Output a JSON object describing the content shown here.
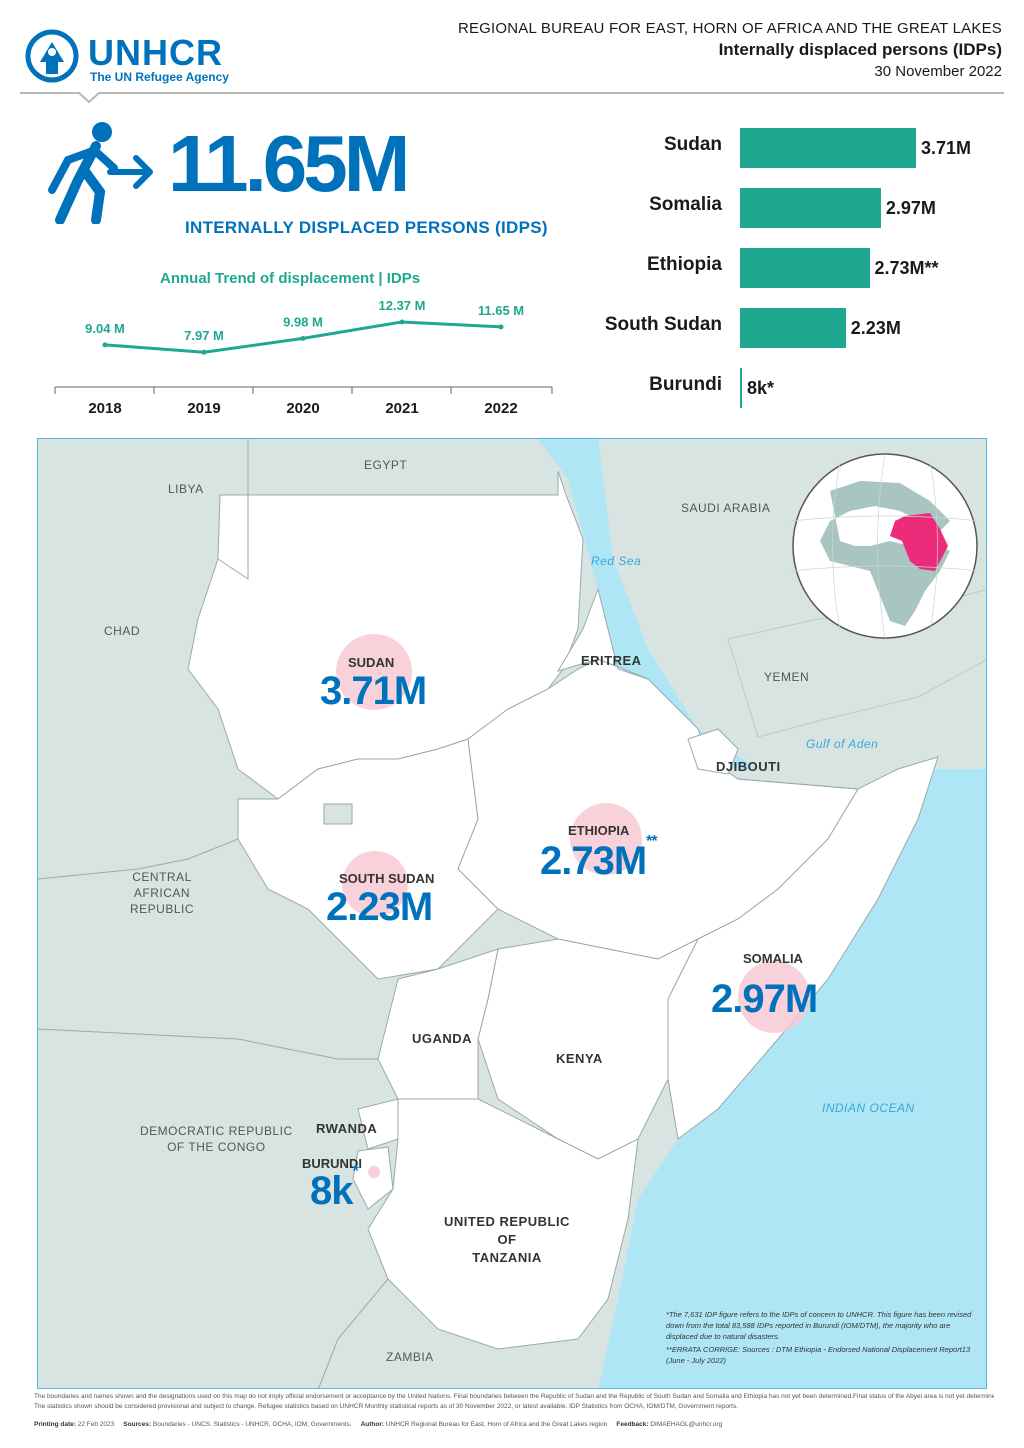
{
  "header": {
    "org_name": "UNHCR",
    "org_tagline": "The UN Refugee Agency",
    "bureau": "REGIONAL BUREAU FOR EAST, HORN OF AFRICA AND THE GREAT LAKES",
    "title": "Internally displaced persons (IDPs)",
    "date": "30 November 2022"
  },
  "headline": {
    "total": "11.65M",
    "label": "INTERNALLY DISPLACED PERSONS (IDPS)"
  },
  "trend": {
    "title": "Annual Trend of displacement | IDPs",
    "points": [
      {
        "year": "2018",
        "value": 9.04,
        "label": "9.04 M"
      },
      {
        "year": "2019",
        "value": 7.97,
        "label": "7.97 M"
      },
      {
        "year": "2020",
        "value": 9.98,
        "label": "9.98 M"
      },
      {
        "year": "2021",
        "value": 12.37,
        "label": "12.37 M"
      },
      {
        "year": "2022",
        "value": 11.65,
        "label": "11.65 M"
      }
    ]
  },
  "chart_data": {
    "type": "bar",
    "categories": [
      "Sudan",
      "Somalia",
      "Ethiopia",
      "South Sudan",
      "Burundi"
    ],
    "values": [
      3.71,
      2.97,
      2.73,
      2.23,
      0.008
    ],
    "value_labels": [
      "3.71M",
      "2.97M",
      "2.73M**",
      "2.23M",
      "8k*"
    ],
    "orientation": "horizontal",
    "color": "#1fa88f"
  },
  "map": {
    "countries": {
      "libya": "LIBYA",
      "egypt": "EGYPT",
      "chad": "CHAD",
      "saudi": "SAUDI ARABIA",
      "eritrea": "ERITREA",
      "yemen": "YEMEN",
      "djibouti": "DJIBOUTI",
      "car": "CENTRAL\nAFRICAN\nREPUBLIC",
      "uganda": "UGANDA",
      "kenya": "KENYA",
      "drc": "DEMOCRATIC REPUBLIC\nOF THE CONGO",
      "rwanda": "RWANDA",
      "tanzania": "UNITED REPUBLIC\nOF\nTANZANIA",
      "zambia": "ZAMBIA"
    },
    "seas": {
      "red_sea": "Red Sea",
      "gulf_aden": "Gulf of Aden",
      "indian_ocean": "INDIAN OCEAN"
    },
    "figures": [
      {
        "name": "SUDAN",
        "value": "3.71M",
        "mark": ""
      },
      {
        "name": "ETHIOPIA",
        "value": "2.73M",
        "mark": "**"
      },
      {
        "name": "SOUTH SUDAN",
        "value": "2.23M",
        "mark": ""
      },
      {
        "name": "SOMALIA",
        "value": "2.97M",
        "mark": ""
      },
      {
        "name": "BURUNDI",
        "value": "8k",
        "mark": "*"
      }
    ],
    "note1": "*The 7,631 IDP figure refers to the IDPs of concern to UNHCR. This figure has been revised down from the total 83,588 IDPs reported in Burundi (IOM/DTM), the majority who are displaced due to natural disasters.",
    "note2": "**ERRATA CORRIGE: Sources : DTM Ethiopia - Endorsed National Displacement Report13 (June - July 2022)"
  },
  "footer": {
    "disclaimer": "The boundaries and names shown and the designations used on this map do not imply official endorsement or acceptance by the United Nations. Final boundaries between the Republic of Sudan and the Republic of South Sudan and Somalia and Ethiopia has not yet been determined.Final status of the Abyei area is not yet determined.",
    "stats_note": "The statistics shown should be considered provisional and subject to change. Refugee statistics based on UNHCR Monthly statistical reports as of 30 November 2022, or latest available. IDP Statistics from OCHA, IOM/DTM, Government reports.",
    "printing_label": "Printing date:",
    "printing_value": "22 Feb 2023",
    "sources_label": "Sources:",
    "sources_value": "Boundaries - UNCS. Statistics - UNHCR, OCHA, IOM, Governments.",
    "author_label": "Author:",
    "author_value": "UNHCR Regional Bureau for East, Horn of Africa and the Great Lakes region",
    "feedback_label": "Feedback:",
    "feedback_value": "DIMAEHAGL@unhcr.org"
  },
  "colors": {
    "brand_blue": "#0072bc",
    "bar_teal": "#1fa88f",
    "bubble_pink": "#f7c9d3",
    "sea_blue": "#aee6f6",
    "land_grey": "#d8e4e2",
    "highlight_magenta": "#ec2c7b"
  }
}
